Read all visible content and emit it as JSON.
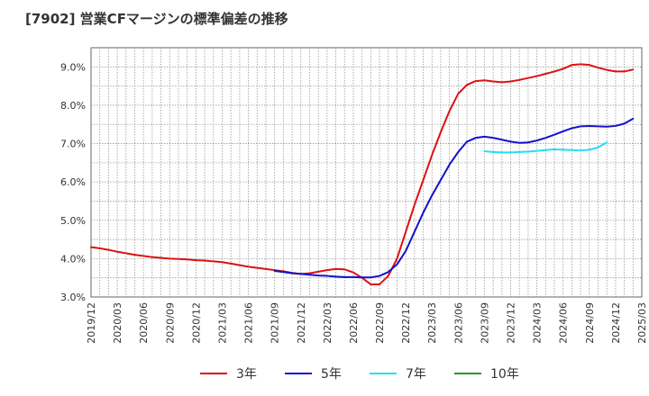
{
  "chart_data": {
    "type": "line",
    "title": "[7902]  営業CFマージンの標準偏差の推移",
    "xlabel": "",
    "ylabel": "",
    "ylim": [
      3.0,
      9.5
    ],
    "y_ticks": [
      3.0,
      4.0,
      5.0,
      6.0,
      7.0,
      8.0,
      9.0
    ],
    "y_tick_labels": [
      "3.0%",
      "4.0%",
      "5.0%",
      "6.0%",
      "7.0%",
      "8.0%",
      "9.0%"
    ],
    "x_start": "2019/12",
    "x_tick_labels": [
      "2019/12",
      "2020/03",
      "2020/06",
      "2020/09",
      "2020/12",
      "2021/03",
      "2021/06",
      "2021/09",
      "2021/12",
      "2022/03",
      "2022/06",
      "2022/09",
      "2022/12",
      "2023/03",
      "2023/06",
      "2023/09",
      "2023/12",
      "2024/03",
      "2024/06",
      "2024/09",
      "2024/12",
      "2025/03"
    ],
    "grid": true,
    "legend_position": "bottom",
    "series": [
      {
        "name": "3年",
        "color": "#dd1111",
        "points": [
          [
            0,
            4.3
          ],
          [
            1,
            4.27
          ],
          [
            2,
            4.23
          ],
          [
            3,
            4.18
          ],
          [
            4,
            4.14
          ],
          [
            5,
            4.1
          ],
          [
            6,
            4.07
          ],
          [
            7,
            4.04
          ],
          [
            8,
            4.02
          ],
          [
            9,
            4.0
          ],
          [
            10,
            3.99
          ],
          [
            11,
            3.98
          ],
          [
            12,
            3.96
          ],
          [
            13,
            3.95
          ],
          [
            14,
            3.93
          ],
          [
            15,
            3.91
          ],
          [
            16,
            3.87
          ],
          [
            17,
            3.83
          ],
          [
            18,
            3.79
          ],
          [
            19,
            3.76
          ],
          [
            20,
            3.73
          ],
          [
            21,
            3.7
          ],
          [
            22,
            3.67
          ],
          [
            23,
            3.63
          ],
          [
            24,
            3.6
          ],
          [
            25,
            3.62
          ],
          [
            26,
            3.66
          ],
          [
            27,
            3.7
          ],
          [
            28,
            3.73
          ],
          [
            29,
            3.72
          ],
          [
            30,
            3.64
          ],
          [
            31,
            3.5
          ],
          [
            32,
            3.33
          ],
          [
            33,
            3.33
          ],
          [
            34,
            3.55
          ],
          [
            35,
            4.0
          ],
          [
            36,
            4.7
          ],
          [
            37,
            5.4
          ],
          [
            38,
            6.05
          ],
          [
            39,
            6.7
          ],
          [
            40,
            7.3
          ],
          [
            41,
            7.85
          ],
          [
            42,
            8.3
          ],
          [
            43,
            8.53
          ],
          [
            44,
            8.63
          ],
          [
            45,
            8.65
          ],
          [
            46,
            8.62
          ],
          [
            47,
            8.6
          ],
          [
            48,
            8.62
          ],
          [
            49,
            8.66
          ],
          [
            50,
            8.71
          ],
          [
            51,
            8.76
          ],
          [
            52,
            8.82
          ],
          [
            53,
            8.88
          ],
          [
            54,
            8.95
          ],
          [
            55,
            9.05
          ],
          [
            56,
            9.07
          ],
          [
            57,
            9.05
          ],
          [
            58,
            8.98
          ],
          [
            59,
            8.92
          ],
          [
            60,
            8.88
          ],
          [
            61,
            8.88
          ],
          [
            62,
            8.93
          ]
        ]
      },
      {
        "name": "5年",
        "color": "#1111cc",
        "points": [
          [
            21,
            3.68
          ],
          [
            22,
            3.65
          ],
          [
            23,
            3.62
          ],
          [
            24,
            3.6
          ],
          [
            25,
            3.58
          ],
          [
            26,
            3.56
          ],
          [
            27,
            3.55
          ],
          [
            28,
            3.53
          ],
          [
            29,
            3.52
          ],
          [
            30,
            3.52
          ],
          [
            31,
            3.51
          ],
          [
            32,
            3.51
          ],
          [
            33,
            3.55
          ],
          [
            34,
            3.65
          ],
          [
            35,
            3.85
          ],
          [
            36,
            4.2
          ],
          [
            37,
            4.7
          ],
          [
            38,
            5.2
          ],
          [
            39,
            5.65
          ],
          [
            40,
            6.05
          ],
          [
            41,
            6.45
          ],
          [
            42,
            6.78
          ],
          [
            43,
            7.05
          ],
          [
            44,
            7.15
          ],
          [
            45,
            7.18
          ],
          [
            46,
            7.15
          ],
          [
            47,
            7.1
          ],
          [
            48,
            7.05
          ],
          [
            49,
            7.02
          ],
          [
            50,
            7.03
          ],
          [
            51,
            7.08
          ],
          [
            52,
            7.15
          ],
          [
            53,
            7.23
          ],
          [
            54,
            7.32
          ],
          [
            55,
            7.4
          ],
          [
            56,
            7.45
          ],
          [
            57,
            7.46
          ],
          [
            58,
            7.45
          ],
          [
            59,
            7.44
          ],
          [
            60,
            7.46
          ],
          [
            61,
            7.52
          ],
          [
            62,
            7.65
          ]
        ]
      },
      {
        "name": "7年",
        "color": "#22e0f0",
        "points": [
          [
            45,
            6.8
          ],
          [
            46,
            6.78
          ],
          [
            47,
            6.77
          ],
          [
            48,
            6.77
          ],
          [
            49,
            6.78
          ],
          [
            50,
            6.79
          ],
          [
            51,
            6.81
          ],
          [
            52,
            6.83
          ],
          [
            53,
            6.85
          ],
          [
            54,
            6.84
          ],
          [
            55,
            6.83
          ],
          [
            56,
            6.82
          ],
          [
            57,
            6.84
          ],
          [
            58,
            6.9
          ],
          [
            59,
            7.03
          ]
        ]
      },
      {
        "name": "10年",
        "color": "#229922",
        "points": []
      }
    ]
  }
}
